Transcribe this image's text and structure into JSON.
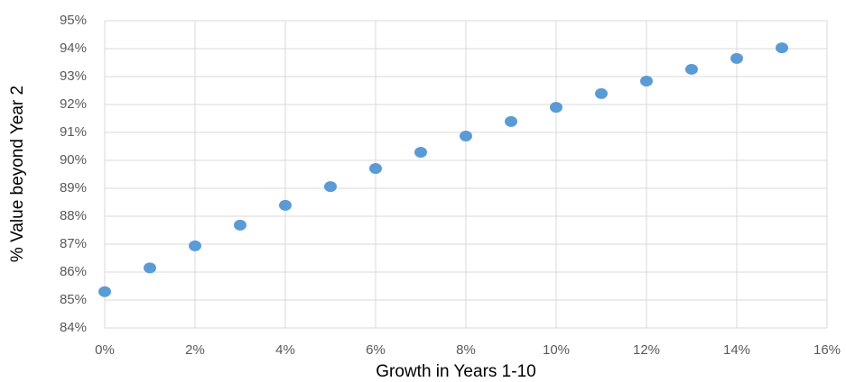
{
  "chart_data": {
    "type": "scatter",
    "x_label": "Growth in Years 1-10",
    "y_label": "% Value beyond Year 2",
    "color": "#5b9bd5",
    "grid": true,
    "series": [
      {
        "x": [
          0,
          1,
          2,
          3,
          4,
          5,
          6,
          7,
          8,
          9,
          10,
          11,
          12,
          13,
          14,
          15
        ],
        "values": [
          85.3,
          86.15,
          86.94,
          87.68,
          88.39,
          89.06,
          89.71,
          90.29,
          90.87,
          91.39,
          91.9,
          92.39,
          92.84,
          93.26,
          93.65,
          94.03
        ]
      }
    ],
    "xlim": [
      0,
      16
    ],
    "xticks": [
      {
        "value": 0,
        "label": "0%"
      },
      {
        "value": 2,
        "label": "2%"
      },
      {
        "value": 4,
        "label": "4%"
      },
      {
        "value": 6,
        "label": "6%"
      },
      {
        "value": 8,
        "label": "8%"
      },
      {
        "value": 10,
        "label": "10%"
      },
      {
        "value": 12,
        "label": "12%"
      },
      {
        "value": 14,
        "label": "14%"
      },
      {
        "value": 16,
        "label": "16%"
      }
    ],
    "ylim": [
      84,
      95
    ],
    "yticks": [
      {
        "value": 84,
        "label": "84%"
      },
      {
        "value": 85,
        "label": "85%"
      },
      {
        "value": 86,
        "label": "86%"
      },
      {
        "value": 87,
        "label": "87%"
      },
      {
        "value": 88,
        "label": "88%"
      },
      {
        "value": 89,
        "label": "89%"
      },
      {
        "value": 90,
        "label": "90%"
      },
      {
        "value": 91,
        "label": "91%"
      },
      {
        "value": 92,
        "label": "92%"
      },
      {
        "value": 93,
        "label": "93%"
      },
      {
        "value": 94,
        "label": "94%"
      },
      {
        "value": 95,
        "label": "95%"
      }
    ]
  }
}
